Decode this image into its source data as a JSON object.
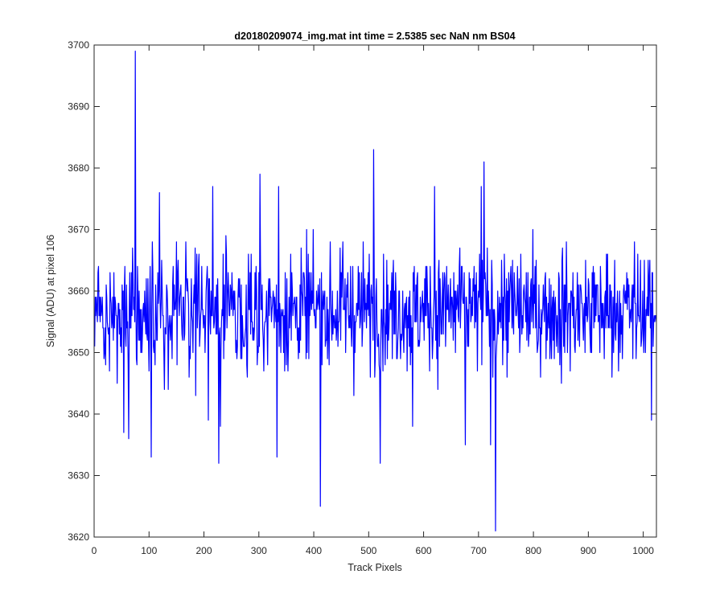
{
  "chart_data": {
    "type": "line",
    "title": "d20180209074_img.mat int time = 2.5385 sec  NaN nm BS04",
    "xlabel": "Track Pixels",
    "ylabel": "Signal (ADU) at pixel 106",
    "xlim": [
      0,
      1024
    ],
    "ylim": [
      3620,
      3700
    ],
    "x_ticks": [
      0,
      100,
      200,
      300,
      400,
      500,
      600,
      700,
      800,
      900,
      1000
    ],
    "y_ticks": [
      3620,
      3630,
      3640,
      3650,
      3660,
      3670,
      3680,
      3690,
      3700
    ],
    "x_tick_labels": [
      "0",
      "100",
      "200",
      "300",
      "400",
      "500",
      "600",
      "700",
      "800",
      "900",
      "1000"
    ],
    "y_tick_labels": [
      "3620",
      "3630",
      "3640",
      "3650",
      "3660",
      "3670",
      "3680",
      "3690",
      "3700"
    ],
    "grid": false,
    "legend": "none",
    "series": [
      {
        "color": "#0000ff",
        "x_start": 1,
        "x_step": 1,
        "baseline": 3657,
        "noise_amplitude": 15,
        "peaks": [
          {
            "x": 75,
            "y": 3699
          },
          {
            "x": 509,
            "y": 3683
          },
          {
            "x": 710,
            "y": 3681
          },
          {
            "x": 302,
            "y": 3679
          },
          {
            "x": 216,
            "y": 3677
          },
          {
            "x": 336,
            "y": 3677
          },
          {
            "x": 620,
            "y": 3677
          },
          {
            "x": 119,
            "y": 3676
          },
          {
            "x": 705,
            "y": 3677
          }
        ],
        "troughs": [
          {
            "x": 731,
            "y": 3621
          },
          {
            "x": 412,
            "y": 3625
          },
          {
            "x": 227,
            "y": 3632
          },
          {
            "x": 521,
            "y": 3632
          },
          {
            "x": 104,
            "y": 3633
          },
          {
            "x": 333,
            "y": 3633
          },
          {
            "x": 722,
            "y": 3635
          },
          {
            "x": 676,
            "y": 3635
          },
          {
            "x": 63,
            "y": 3636
          },
          {
            "x": 54,
            "y": 3637
          },
          {
            "x": 230,
            "y": 3638
          },
          {
            "x": 580,
            "y": 3638
          },
          {
            "x": 1015,
            "y": 3639
          },
          {
            "x": 208,
            "y": 3639
          }
        ]
      }
    ]
  }
}
